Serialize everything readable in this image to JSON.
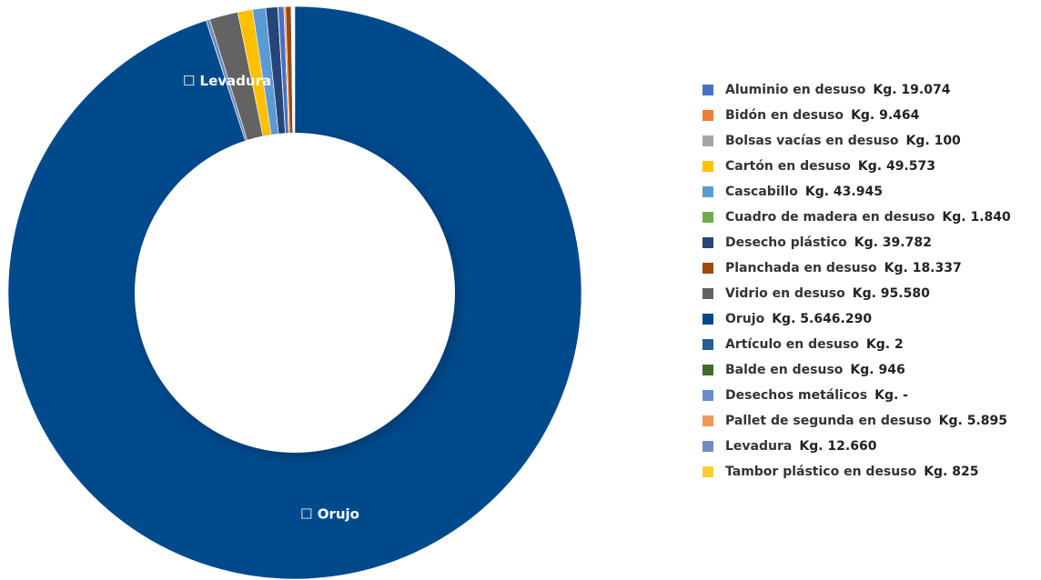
{
  "chart_data": {
    "type": "pie",
    "donut": true,
    "legend_position": "right",
    "series": [
      {
        "name": "Aluminio en desuso",
        "value": 19074,
        "value_label": "Kg. 19.074",
        "color": "#4472C4"
      },
      {
        "name": "Bidón en desuso",
        "value": 9464,
        "value_label": "Kg. 9.464",
        "color": "#ED7D31"
      },
      {
        "name": "Bolsas vacías en desuso",
        "value": 100,
        "value_label": "Kg. 100",
        "color": "#A5A5A5"
      },
      {
        "name": "Cartón en desuso",
        "value": 49573,
        "value_label": "Kg. 49.573",
        "color": "#FFC000"
      },
      {
        "name": "Cascabillo",
        "value": 43945,
        "value_label": "Kg. 43.945",
        "color": "#5B9BD5"
      },
      {
        "name": "Cuadro de madera en desuso",
        "value": 1840,
        "value_label": "Kg. 1.840",
        "color": "#70AD47"
      },
      {
        "name": "Desecho plástico",
        "value": 39782,
        "value_label": "Kg. 39.782",
        "color": "#264478"
      },
      {
        "name": "Planchada en desuso",
        "value": 18337,
        "value_label": "Kg. 18.337",
        "color": "#9E480E"
      },
      {
        "name": "Vidrio en desuso",
        "value": 95580,
        "value_label": "Kg. 95.580",
        "color": "#636363"
      },
      {
        "name": "Orujo",
        "value": 5646290,
        "value_label": "Kg. 5.646.290",
        "color": "#004A8C"
      },
      {
        "name": "Artículo en desuso",
        "value": 2,
        "value_label": "Kg. 2",
        "color": "#255E91"
      },
      {
        "name": "Balde en desuso",
        "value": 946,
        "value_label": "Kg. 946",
        "color": "#43682B"
      },
      {
        "name": "Desechos metálicos",
        "value": 0,
        "value_label": "Kg. -",
        "color": "#698ED0"
      },
      {
        "name": "Pallet de segunda en desuso",
        "value": 5895,
        "value_label": "Kg. 5.895",
        "color": "#F1975A"
      },
      {
        "name": "Levadura",
        "value": 12660,
        "value_label": "Kg. 12.660",
        "color": "#6F8BC6"
      },
      {
        "name": "Tambor plástico en desuso",
        "value": 825,
        "value_label": "Kg. 825",
        "color": "#FFCD33"
      }
    ],
    "draw_order": [
      "Orujo",
      "Levadura",
      "Vidrio en desuso",
      "Cartón en desuso",
      "Cascabillo",
      "Desecho plástico",
      "Balde en desuso",
      "Aluminio en desuso",
      "Pallet de segunda en desuso",
      "Planchada en desuso",
      "Cuadro de madera en desuso"
    ],
    "slice_labels": [
      {
        "series": "Levadura",
        "text": "☐ Levadura"
      },
      {
        "series": "Orujo",
        "text": "☐ Orujo"
      }
    ]
  }
}
